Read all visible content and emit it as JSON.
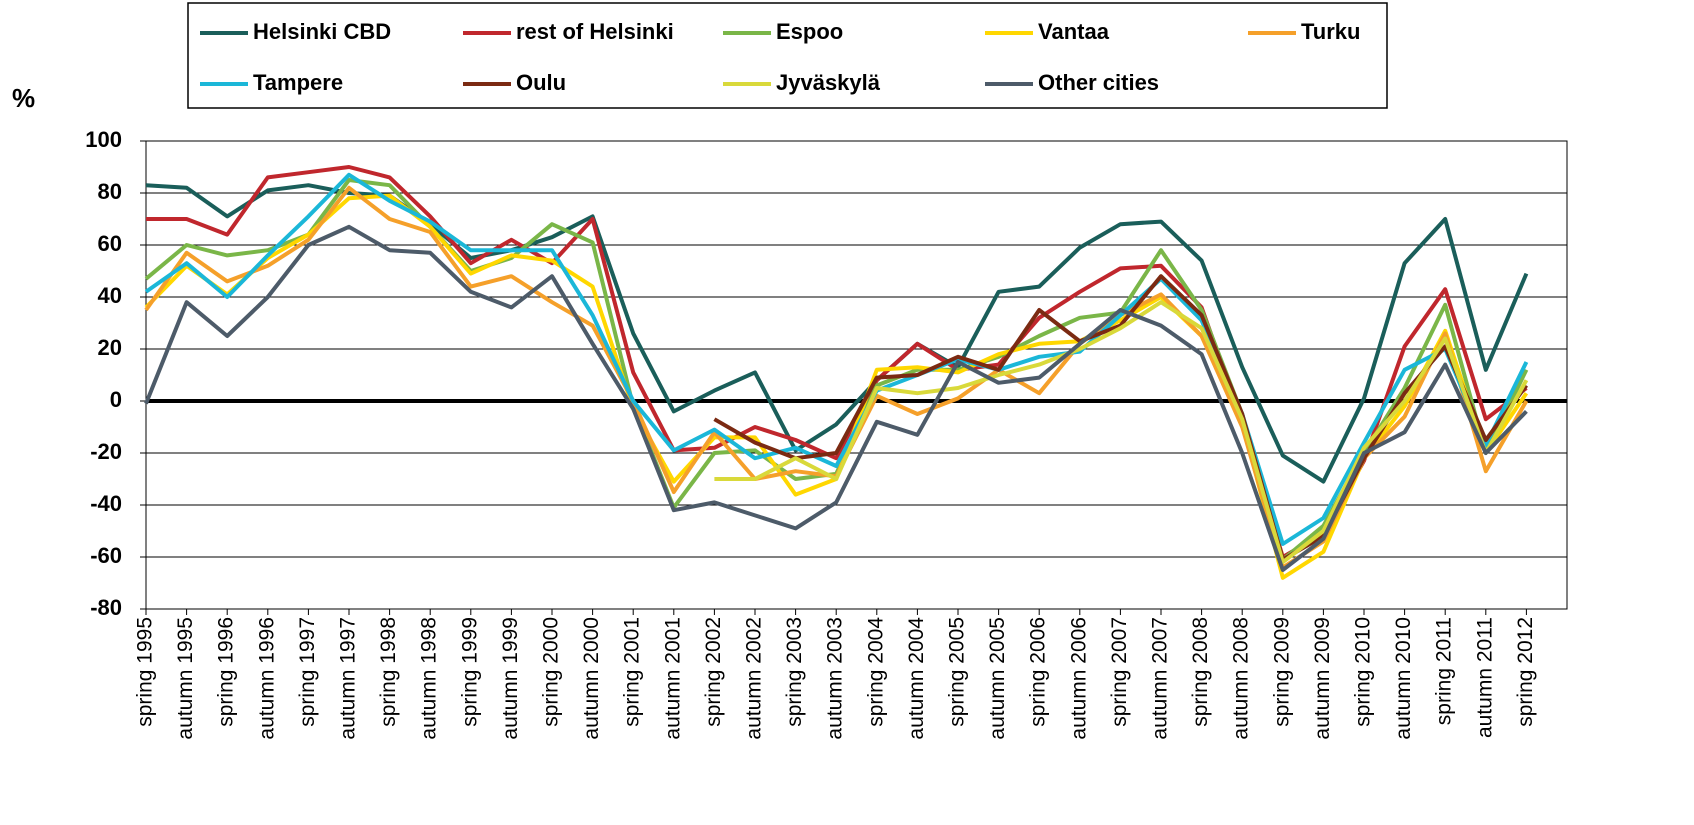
{
  "chart_data": {
    "type": "line",
    "y_label": "%",
    "categories": [
      "spring 1995",
      "autumn 1995",
      "spring 1996",
      "autumn 1996",
      "spring 1997",
      "autumn 1997",
      "spring 1998",
      "autumn 1998",
      "spring 1999",
      "autumn 1999",
      "spring 2000",
      "autumn 2000",
      "spring 2001",
      "autumn 2001",
      "spring 2002",
      "autumn 2002",
      "spring 2003",
      "autumn 2003",
      "spring 2004",
      "autumn 2004",
      "spring 2005",
      "autumn 2005",
      "spring 2006",
      "autumn 2006",
      "spring 2007",
      "autumn 2007",
      "spring 2008",
      "autumn 2008",
      "spring 2009",
      "autumn 2009",
      "spring 2010",
      "autumn 2010",
      "spring 2011",
      "autumn 2011",
      "spring 2012"
    ],
    "series": [
      {
        "name": "Helsinki CBD",
        "color": "#1a5e5a",
        "values": [
          83,
          82,
          71,
          81,
          83,
          80,
          79,
          68,
          55,
          58,
          63,
          71,
          26,
          -4,
          4,
          11,
          -19,
          -9,
          8,
          22,
          13,
          42,
          44,
          59,
          68,
          69,
          54,
          13,
          -21,
          -31,
          1,
          53,
          70,
          12,
          49
        ]
      },
      {
        "name": "rest of Helsinki",
        "color": "#c0272d",
        "values": [
          70,
          70,
          64,
          86,
          88,
          90,
          86,
          71,
          53,
          62,
          53,
          70,
          11,
          -19,
          -18,
          -10,
          -15,
          -22,
          8,
          22,
          12,
          14,
          32,
          42,
          51,
          52,
          36,
          -8,
          -60,
          -51,
          -23,
          21,
          43,
          -7,
          5
        ]
      },
      {
        "name": "Espoo",
        "color": "#7ab648",
        "values": [
          47,
          60,
          56,
          58,
          64,
          85,
          83,
          67,
          50,
          55,
          68,
          61,
          -2,
          -41,
          -20,
          -19,
          -30,
          -28,
          6,
          12,
          12,
          17,
          25,
          32,
          34,
          58,
          35,
          -5,
          -61,
          -48,
          -20,
          5,
          37,
          -20,
          12
        ]
      },
      {
        "name": "Vantaa",
        "color": "#ffd700",
        "values": [
          36,
          52,
          41,
          55,
          64,
          78,
          79,
          67,
          49,
          56,
          54,
          44,
          -3,
          -31,
          -14,
          -14,
          -36,
          -30,
          12,
          13,
          11,
          18,
          22,
          23,
          31,
          40,
          25,
          -8,
          -68,
          -58,
          -22,
          -2,
          27,
          -20,
          3
        ]
      },
      {
        "name": "Turku",
        "color": "#f5a02a",
        "values": [
          35,
          57,
          46,
          52,
          62,
          82,
          70,
          65,
          44,
          48,
          38,
          29,
          0,
          -35,
          -12,
          -30,
          -27,
          -29,
          2,
          -5,
          1,
          12,
          3,
          22,
          33,
          41,
          25,
          -10,
          -64,
          -54,
          -22,
          -6,
          26,
          -27,
          0
        ]
      },
      {
        "name": "Tampere",
        "color": "#1bb7d8",
        "values": [
          42,
          53,
          40,
          56,
          71,
          87,
          77,
          69,
          58,
          58,
          58,
          33,
          0,
          -19,
          -11,
          -22,
          -18,
          -25,
          4,
          10,
          16,
          12,
          17,
          19,
          33,
          47,
          31,
          -5,
          -55,
          -45,
          -16,
          12,
          20,
          -17,
          15
        ]
      },
      {
        "name": "Oulu",
        "color": "#7b2a12",
        "values": [
          null,
          null,
          null,
          null,
          null,
          null,
          null,
          null,
          null,
          null,
          null,
          null,
          null,
          null,
          -7,
          -16,
          -22,
          -20,
          9,
          10,
          17,
          12,
          35,
          23,
          29,
          48,
          33,
          -5,
          -61,
          -52,
          -22,
          3,
          21,
          -15,
          6
        ]
      },
      {
        "name": "Jyväskylä",
        "color": "#d9d93a",
        "values": [
          null,
          null,
          null,
          null,
          null,
          null,
          null,
          null,
          null,
          null,
          null,
          null,
          null,
          null,
          -30,
          -30,
          -22,
          -30,
          5,
          3,
          5,
          10,
          14,
          20,
          28,
          38,
          28,
          -7,
          -62,
          -50,
          -18,
          0,
          24,
          -20,
          8
        ]
      },
      {
        "name": "Other cities",
        "color": "#4d5b69",
        "values": [
          -1,
          38,
          25,
          40,
          60,
          67,
          58,
          57,
          42,
          36,
          48,
          22,
          -3,
          -42,
          -39,
          -44,
          -49,
          -39,
          -8,
          -13,
          15,
          7,
          9,
          22,
          35,
          29,
          18,
          -20,
          -65,
          -53,
          -20,
          -12,
          14,
          -20,
          -4
        ]
      }
    ],
    "ylim": [
      -80,
      100
    ],
    "yticks": [
      -80,
      -60,
      -40,
      -20,
      0,
      20,
      40,
      60,
      80,
      100
    ],
    "grid": true
  }
}
